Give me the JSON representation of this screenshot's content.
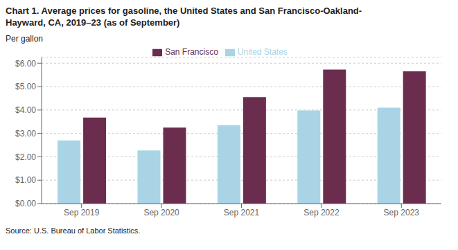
{
  "chart_data": {
    "type": "bar",
    "title": "Chart 1. Average prices for gasoline, the United States and San Francisco-Oakland-\nHayward, CA, 2019–23 (as of September)",
    "ylabel": "Per gallon",
    "source": "Source: U.S. Bureau of Labor Statistics.",
    "categories": [
      "Sep 2019",
      "Sep 2020",
      "Sep 2021",
      "Sep 2022",
      "Sep 2023"
    ],
    "series": [
      {
        "name": "United States",
        "color": "#A8D4E6",
        "values": [
          2.7,
          2.27,
          3.35,
          3.98,
          4.1
        ]
      },
      {
        "name": "San Francisco",
        "color": "#6B2D4E",
        "values": [
          3.68,
          3.25,
          4.55,
          5.73,
          5.65
        ]
      }
    ],
    "ylim": [
      0,
      6.25
    ],
    "yticks": [
      {
        "value": 0.0,
        "label": "$0.00"
      },
      {
        "value": 1.0,
        "label": "$1.00"
      },
      {
        "value": 2.0,
        "label": "$2.00"
      },
      {
        "value": 3.0,
        "label": "$3.00"
      },
      {
        "value": 4.0,
        "label": "$4.00"
      },
      {
        "value": 5.0,
        "label": "$5.00"
      },
      {
        "value": 6.0,
        "label": "$6.00"
      }
    ],
    "grid": true,
    "legend": "top"
  }
}
